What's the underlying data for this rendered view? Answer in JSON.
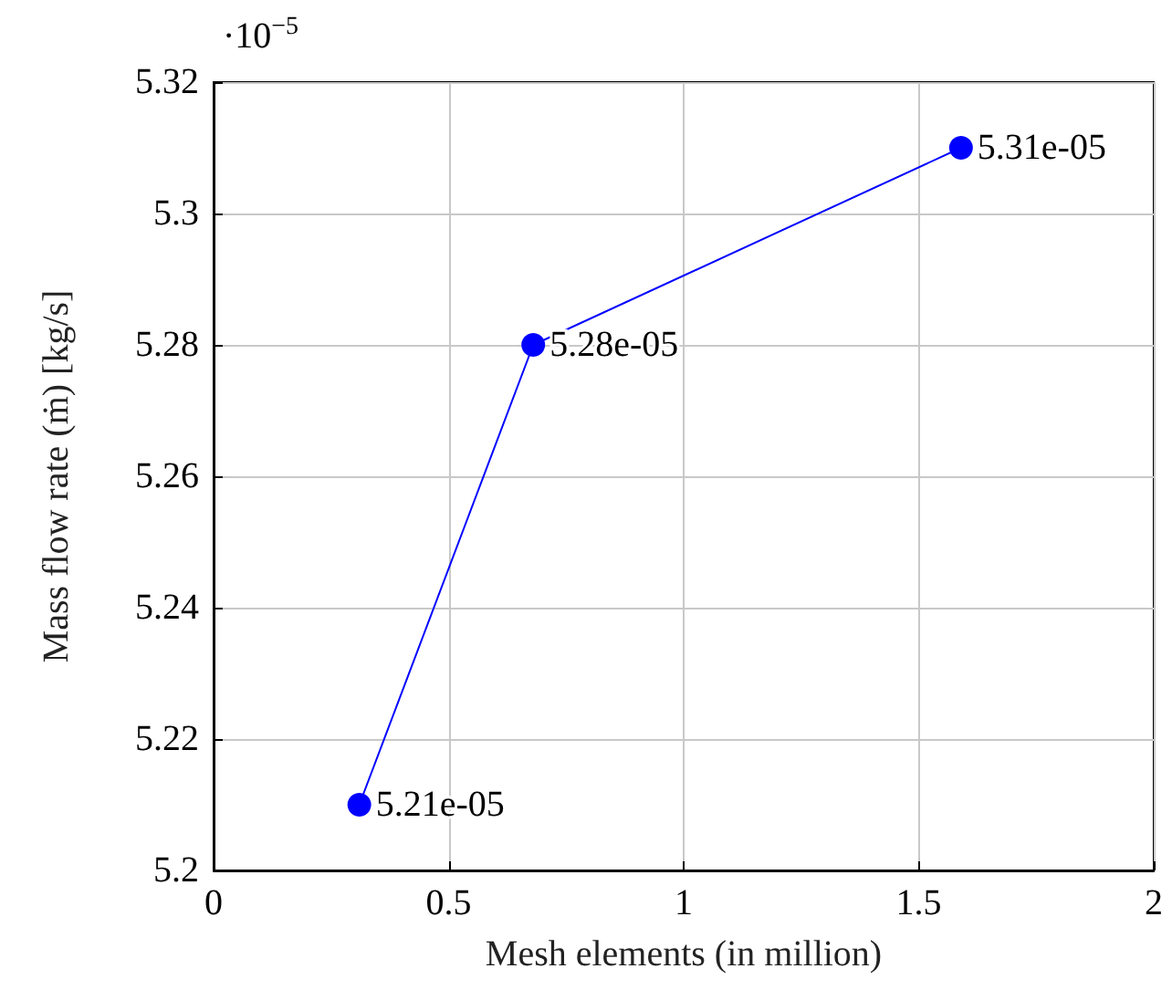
{
  "chart_data": {
    "type": "line",
    "xlabel": "Mesh elements (in million)",
    "ylabel": "Mass flow rate (ṁ) [kg/s]",
    "annotations": [
      "·10$^{−5}$",
      {
        "text": "5.21e-05",
        "x": 0.31,
        "y": 5.21
      },
      {
        "text": "5.28e-05",
        "x": 0.68,
        "y": 5.28
      },
      {
        "text": "5.31e-05",
        "x": 1.59,
        "y": 5.31
      }
    ],
    "x": [
      0.31,
      0.68,
      1.59
    ],
    "series": [
      {
        "color": "#0000ff",
        "values": [
          5.21,
          5.28,
          5.31
        ]
      }
    ],
    "xlim": [
      0,
      2
    ],
    "xticks": [
      0,
      0.5,
      1,
      1.5,
      2
    ],
    "ylim": [
      5.2,
      5.32
    ],
    "yticks": [
      5.2,
      5.22,
      5.24,
      5.26,
      5.28,
      5.3,
      5.32
    ],
    "grid": true,
    "marker": "circle",
    "line_style": "solid"
  }
}
